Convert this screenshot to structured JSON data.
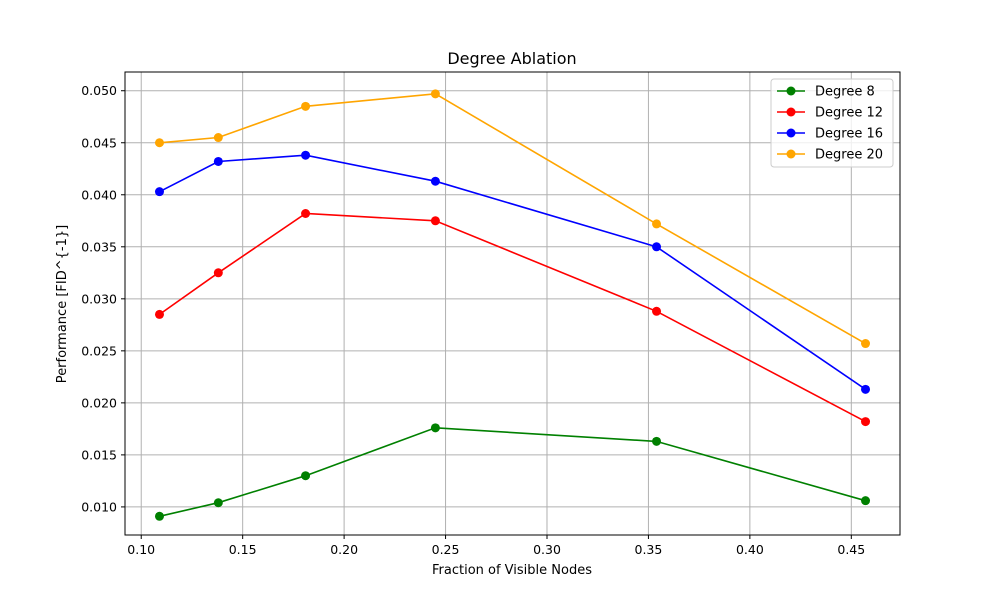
{
  "chart_data": {
    "type": "line",
    "title": "Degree Ablation",
    "xlabel": "Fraction of Visible Nodes",
    "ylabel": "Performance [FID^{-1}]",
    "xlim": [
      0.092,
      0.474
    ],
    "ylim": [
      0.0073,
      0.0518
    ],
    "xticks": [
      "0.10",
      "0.15",
      "0.20",
      "0.25",
      "0.30",
      "0.35",
      "0.40",
      "0.45"
    ],
    "yticks": [
      "0.010",
      "0.015",
      "0.020",
      "0.025",
      "0.030",
      "0.035",
      "0.040",
      "0.045",
      "0.050"
    ],
    "grid": true,
    "legend_position": "top-right",
    "x": [
      0.109,
      0.138,
      0.181,
      0.245,
      0.354,
      0.457
    ],
    "series": [
      {
        "name": "Degree 8",
        "color": "#008000",
        "values": [
          0.0091,
          0.0104,
          0.013,
          0.0176,
          0.0163,
          0.0106
        ]
      },
      {
        "name": "Degree 12",
        "color": "#ff0000",
        "values": [
          0.0285,
          0.0325,
          0.0382,
          0.0375,
          0.0288,
          0.0182
        ]
      },
      {
        "name": "Degree 16",
        "color": "#0000ff",
        "values": [
          0.0403,
          0.0432,
          0.0438,
          0.0413,
          0.035,
          0.0213
        ]
      },
      {
        "name": "Degree 20",
        "color": "#ffa500",
        "values": [
          0.045,
          0.0455,
          0.0485,
          0.0497,
          0.0372,
          0.0257
        ]
      }
    ]
  }
}
